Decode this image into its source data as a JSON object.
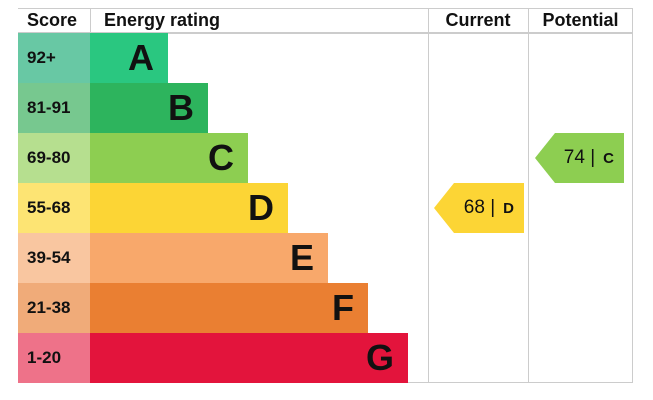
{
  "headers": {
    "score": "Score",
    "rating": "Energy rating",
    "current": "Current",
    "potential": "Potential"
  },
  "chart_data": {
    "type": "table",
    "bands": [
      {
        "score": "92+",
        "letter": "A",
        "color": "#2ac780",
        "score_color": "#68c8a4"
      },
      {
        "score": "81-91",
        "letter": "B",
        "color": "#2db45d",
        "score_color": "#77c88f"
      },
      {
        "score": "69-80",
        "letter": "C",
        "color": "#8dce51",
        "score_color": "#b6df8f"
      },
      {
        "score": "55-68",
        "letter": "D",
        "color": "#fcd535",
        "score_color": "#fde473"
      },
      {
        "score": "39-54",
        "letter": "E",
        "color": "#f8a86b",
        "score_color": "#f9c6a0"
      },
      {
        "score": "21-38",
        "letter": "F",
        "color": "#ea7f32",
        "score_color": "#f0ab79"
      },
      {
        "score": "1-20",
        "letter": "G",
        "color": "#e3143c",
        "score_color": "#ee7289"
      }
    ],
    "current": {
      "value": "68",
      "letter": "D",
      "band_index": 3,
      "color": "#fcd535"
    },
    "potential": {
      "value": "74",
      "letter": "C",
      "band_index": 2,
      "color": "#8dce51"
    }
  }
}
